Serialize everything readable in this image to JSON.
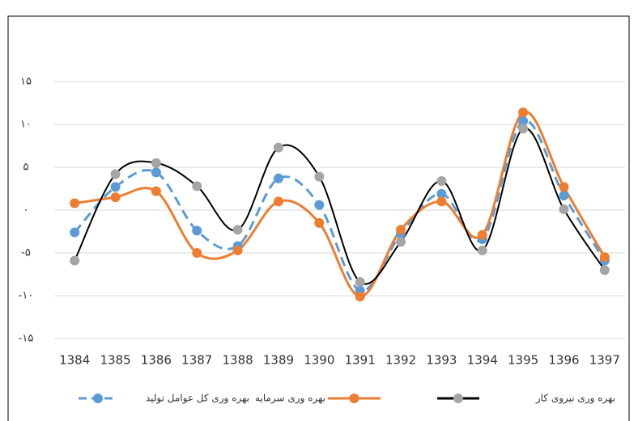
{
  "chart_data": {
    "type": "line",
    "categories": [
      "1384",
      "1385",
      "1386",
      "1387",
      "1388",
      "1389",
      "1390",
      "1391",
      "1392",
      "1393",
      "1394",
      "1395",
      "1396",
      "1397"
    ],
    "series": [
      {
        "name": "بهره وری کل عوامل تولید",
        "color": "#5b9bd5",
        "dashed": true,
        "values": [
          -2.6,
          2.7,
          4.4,
          -2.4,
          -4.2,
          3.7,
          0.6,
          -9.4,
          -2.8,
          1.9,
          -3.4,
          10.4,
          1.7,
          -5.9
        ]
      },
      {
        "name": "بهره وری سرمایه",
        "color": "#ed7d31",
        "dashed": false,
        "values": [
          0.8,
          1.5,
          2.2,
          -5.0,
          -4.7,
          1.0,
          -1.5,
          -10.1,
          -2.3,
          1.0,
          -2.9,
          11.4,
          2.7,
          -5.5
        ]
      },
      {
        "name": "بهره وری نیروی کار",
        "color": "#a5a5a5",
        "line_color": "#000000",
        "dashed": false,
        "values": [
          -5.9,
          4.2,
          5.5,
          2.8,
          -2.3,
          7.3,
          3.9,
          -8.4,
          -3.7,
          3.4,
          -4.7,
          9.5,
          0.1,
          -7.0
        ]
      }
    ],
    "ylim": [
      -15,
      15
    ],
    "yticks": [
      {
        "value": -15,
        "label": "-۱۵"
      },
      {
        "value": -10,
        "label": "-۱۰"
      },
      {
        "value": -5,
        "label": "-۵"
      },
      {
        "value": 0,
        "label": "۰"
      },
      {
        "value": 5,
        "label": "۵"
      },
      {
        "value": 10,
        "label": "۱۰"
      },
      {
        "value": 15,
        "label": "۱۵"
      }
    ],
    "grid": true,
    "smooth": true,
    "legend": "bottom"
  }
}
